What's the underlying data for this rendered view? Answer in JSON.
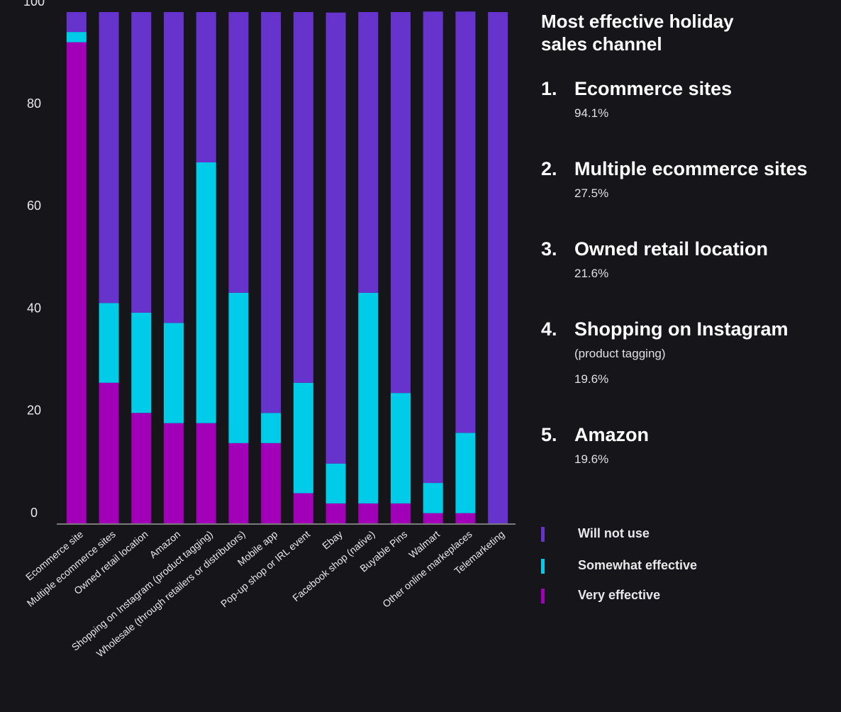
{
  "chart_data": {
    "type": "bar",
    "stacked": true,
    "categories": [
      "Ecommerce site",
      "Multiple ecommerce sites",
      "Owned retail location",
      "Amazon",
      "Shopping on Instagram (product tagging)",
      "Wholesale (through retailers or distributors)",
      "Mobile app",
      "Pop-up shop or IRL event",
      "Ebay",
      "Facebook shop (native)",
      "Buyable Pins",
      "Walmart",
      "Other online markeplaces",
      "Telemarketing"
    ],
    "series": [
      {
        "name": "Very effective",
        "color": "#a100b8",
        "values": [
          94.1,
          27.5,
          21.6,
          19.6,
          19.6,
          15.7,
          15.7,
          5.9,
          3.9,
          3.9,
          3.9,
          2.0,
          2.0,
          0
        ]
      },
      {
        "name": "Somewhat effective",
        "color": "#00ccea",
        "values": [
          2.0,
          15.6,
          19.6,
          19.6,
          51.0,
          29.4,
          5.9,
          21.6,
          7.8,
          41.2,
          21.6,
          5.9,
          15.7,
          0
        ]
      },
      {
        "name": "Will not use",
        "color": "#6633cc",
        "values": [
          3.9,
          56.9,
          58.8,
          60.8,
          29.4,
          54.9,
          78.4,
          72.5,
          88.2,
          54.9,
          74.5,
          92.2,
          82.4,
          100
        ]
      }
    ],
    "ylim": [
      0,
      100
    ],
    "yticks": [
      0,
      20,
      40,
      60,
      80,
      100
    ],
    "grid": false,
    "legend": "right"
  },
  "panel": {
    "title": "Most effective holiday sales channel",
    "items": [
      {
        "rank": "1.",
        "name": "Ecommerce sites",
        "lines": [
          "94.1%"
        ]
      },
      {
        "rank": "2.",
        "name": "Multiple ecommerce sites",
        "lines": [
          "27.5%"
        ]
      },
      {
        "rank": "3.",
        "name": "Owned retail location",
        "lines": [
          "21.6%"
        ]
      },
      {
        "rank": "4.",
        "name": "Shopping on Instagram",
        "lines": [
          "(product tagging)",
          "19.6%"
        ]
      },
      {
        "rank": "5.",
        "name": "Amazon",
        "lines": [
          "19.6%"
        ]
      }
    ]
  }
}
